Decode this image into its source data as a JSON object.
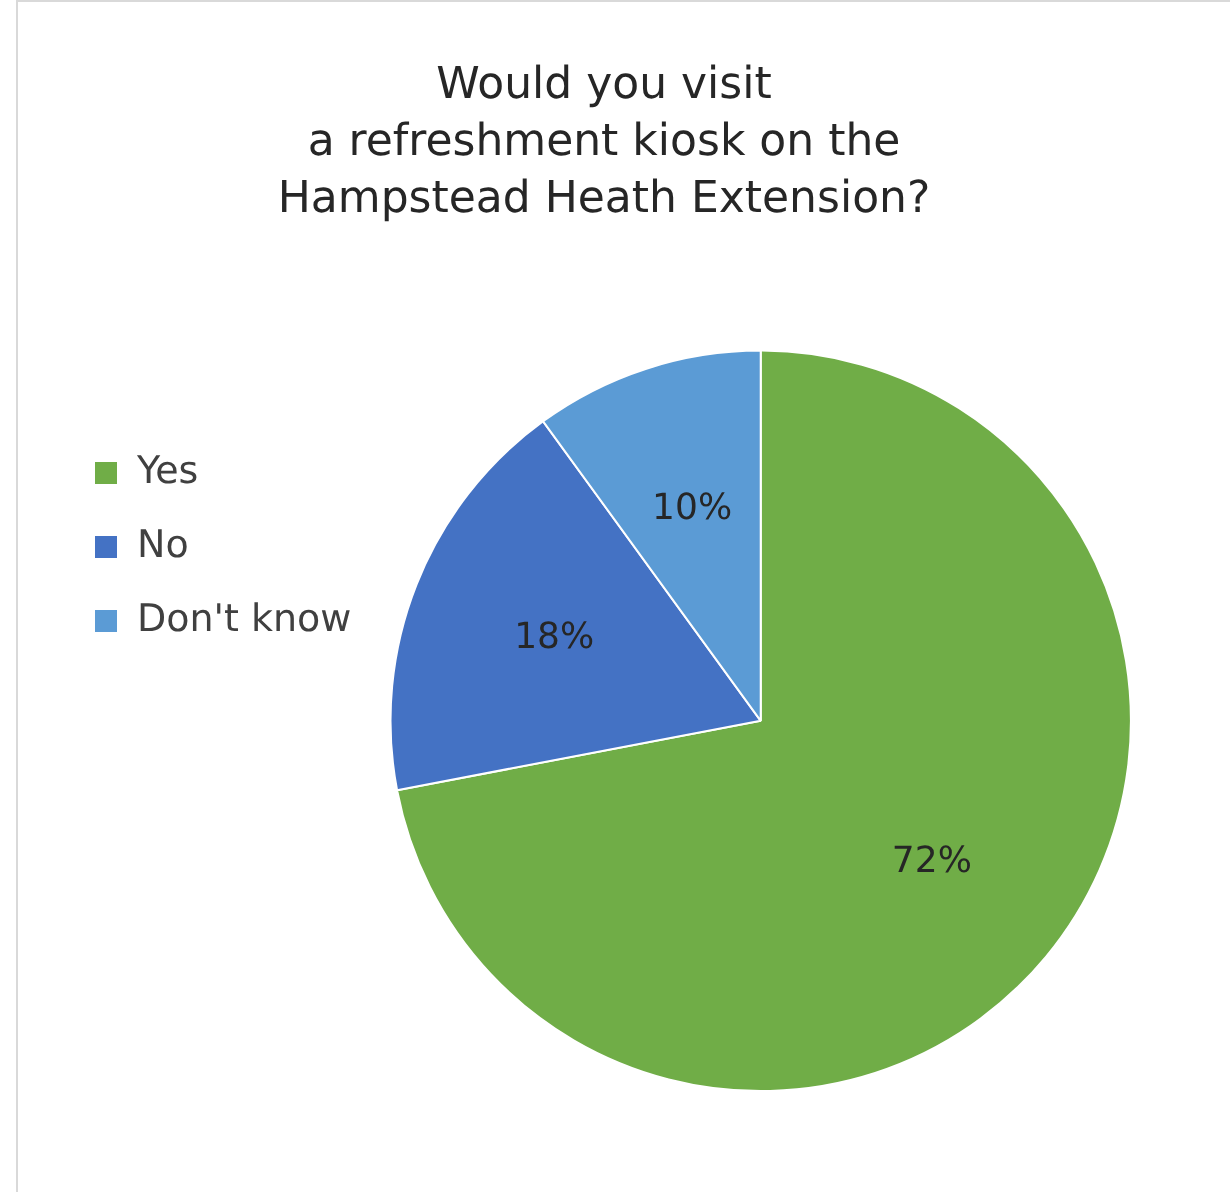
{
  "chart_data": {
    "type": "pie",
    "title": "Would you visit\na refreshment kiosk on the\nHampstead Heath Extension?",
    "categories": [
      "Yes",
      "No",
      "Don't know"
    ],
    "values": [
      72,
      18,
      10
    ],
    "colors": [
      "#70ad47",
      "#4472c4",
      "#5b9bd5"
    ],
    "value_labels": [
      "72%",
      "18%",
      "10%"
    ],
    "legend": "left"
  }
}
